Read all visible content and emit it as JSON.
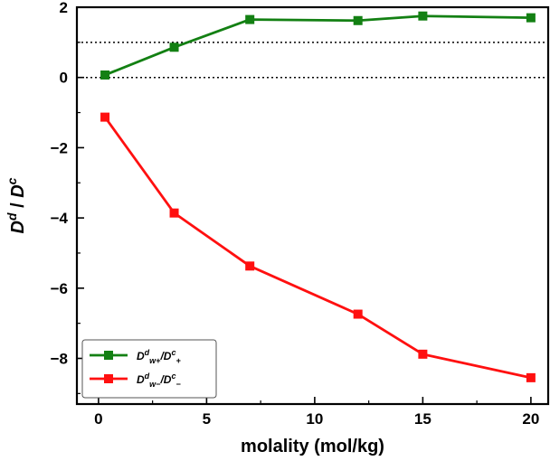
{
  "chart_data": {
    "type": "line",
    "title": "",
    "xlabel": "molality (mol/kg)",
    "ylabel": "D^d / D^c",
    "xlim": [
      -1.0,
      20.8
    ],
    "ylim": [
      -9.3,
      2.0
    ],
    "xticks": [
      0,
      5,
      10,
      15,
      20
    ],
    "xtick_labels": [
      "0",
      "5",
      "10",
      "15",
      "20"
    ],
    "yticks": [
      2,
      0,
      -2,
      -4,
      -6,
      -8
    ],
    "ytick_labels": [
      "2",
      "0",
      "−2",
      "−4",
      "−6",
      "−8"
    ],
    "reference_lines": [
      0,
      1
    ],
    "grid": false,
    "legend_position": "bottom-left",
    "series": [
      {
        "name": "Dw+d/D+c",
        "color": "#138013",
        "marker": "square",
        "x": [
          0.3,
          3.5,
          7.0,
          12.0,
          15.0,
          20.0
        ],
        "y": [
          0.07,
          0.86,
          1.65,
          1.62,
          1.75,
          1.7
        ]
      },
      {
        "name": "Dw−d/D−c",
        "color": "#ff1010",
        "marker": "square",
        "x": [
          0.3,
          3.5,
          7.0,
          12.0,
          15.0,
          20.0
        ],
        "y": [
          -1.13,
          -3.86,
          -5.37,
          -6.74,
          -7.88,
          -8.55
        ]
      }
    ]
  }
}
